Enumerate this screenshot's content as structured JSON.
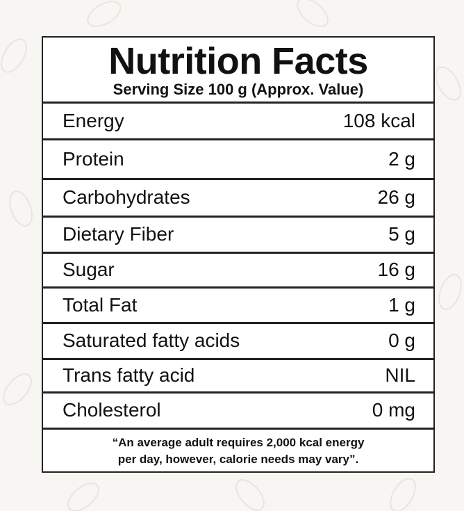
{
  "header": {
    "title": "Nutrition Facts",
    "subtitle": "Serving Size 100 g (Approx. Value)"
  },
  "rows": [
    [
      "Energy",
      "108 kcal"
    ],
    [
      "Protein",
      "2 g"
    ],
    [
      "Carbohydrates",
      "26 g"
    ],
    [
      "Dietary Fiber",
      "5 g"
    ],
    [
      "Sugar",
      "16 g"
    ],
    [
      "Total Fat",
      "1 g"
    ],
    [
      "Saturated fatty acids",
      "0 g"
    ],
    [
      "Trans fatty acid",
      "NIL"
    ],
    [
      "Cholesterol",
      "0 mg"
    ]
  ],
  "footer": [
    "“An average adult requires 2,000 kcal energy",
    "per day, however, calorie needs may vary”."
  ]
}
